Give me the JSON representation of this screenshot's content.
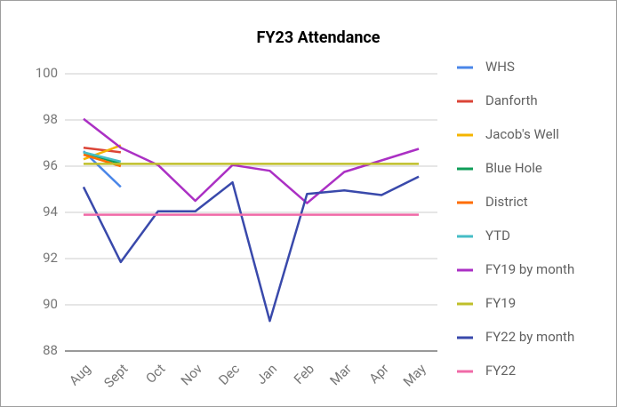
{
  "chart_data": {
    "type": "line",
    "title": "FY23 Attendance",
    "categories": [
      "Aug",
      "Sept",
      "Oct",
      "Nov",
      "Dec",
      "Jan",
      "Feb",
      "Mar",
      "Apr",
      "May"
    ],
    "ylim": [
      88,
      100
    ],
    "yticks": [
      88,
      90,
      92,
      94,
      96,
      98,
      100
    ],
    "grid": true,
    "legend": "right",
    "series": [
      {
        "name": "WHS",
        "color": "#4a86e8",
        "values": [
          96.65,
          95.1,
          null,
          null,
          null,
          null,
          null,
          null,
          null,
          null
        ]
      },
      {
        "name": "Danforth",
        "color": "#db4437",
        "values": [
          96.8,
          96.6,
          null,
          null,
          null,
          null,
          null,
          null,
          null,
          null
        ]
      },
      {
        "name": "Jacob's Well",
        "color": "#f4b400",
        "values": [
          96.3,
          96.9,
          null,
          null,
          null,
          null,
          null,
          null,
          null,
          null
        ]
      },
      {
        "name": "Blue Hole",
        "color": "#0f9d58",
        "values": [
          96.6,
          96.1,
          null,
          null,
          null,
          null,
          null,
          null,
          null,
          null
        ]
      },
      {
        "name": "District",
        "color": "#ff6d00",
        "values": [
          96.5,
          96.0,
          null,
          null,
          null,
          null,
          null,
          null,
          null,
          null
        ]
      },
      {
        "name": "YTD",
        "color": "#46bdc6",
        "values": [
          96.6,
          96.2,
          null,
          null,
          null,
          null,
          null,
          null,
          null,
          null
        ]
      },
      {
        "name": "FY19 by month",
        "color": "#ab30c4",
        "values": [
          98.05,
          96.8,
          96.05,
          94.5,
          96.05,
          95.8,
          94.4,
          95.75,
          96.25,
          96.75
        ]
      },
      {
        "name": "FY19",
        "color": "#bfbf2a",
        "values": [
          96.1,
          96.1,
          96.1,
          96.1,
          96.1,
          96.1,
          96.1,
          96.1,
          96.1,
          96.1
        ]
      },
      {
        "name": "FY22 by month",
        "color": "#3949ab",
        "values": [
          95.1,
          91.85,
          94.05,
          94.05,
          95.3,
          89.3,
          94.8,
          94.95,
          94.75,
          95.55
        ]
      },
      {
        "name": "FY22",
        "color": "#f06aa7",
        "values": [
          93.9,
          93.9,
          93.9,
          93.9,
          93.9,
          93.9,
          93.9,
          93.9,
          93.9,
          93.9
        ]
      }
    ]
  }
}
